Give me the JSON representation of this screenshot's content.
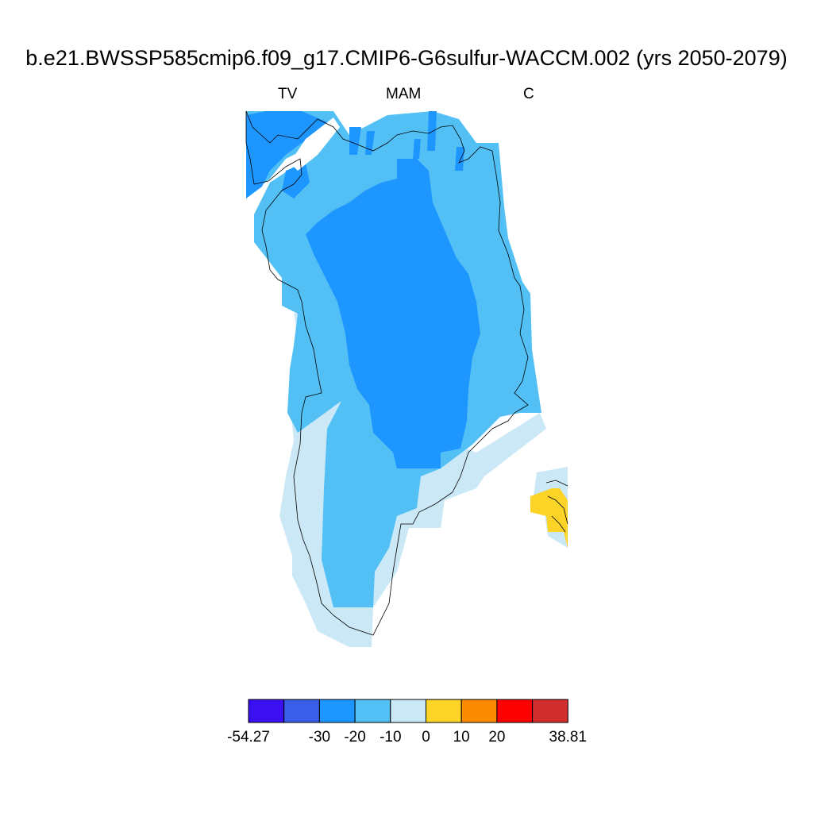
{
  "title": "b.e21.BWSSP585cmip6.f09_g17.CMIP6-G6sulfur-WACCM.002 (yrs 2050-2079)",
  "subtitles": {
    "left": "TV",
    "center": "MAM",
    "right": "C"
  },
  "map": {
    "region": "Greenland",
    "ocean_color": "#ffffff",
    "coastline_color": "#000000"
  },
  "colorbar": {
    "min_label": "-54.27",
    "max_label": "38.81",
    "tick_labels": [
      "-54.27",
      "-30",
      "-20",
      "-10",
      "0",
      "10",
      "20",
      "38.81"
    ],
    "bins": [
      {
        "range": "-54.27 to -40",
        "color": "#3b10f0"
      },
      {
        "range": "-40 to -30",
        "color": "#3b5ee8"
      },
      {
        "range": "-30 to -20",
        "color": "#1e96ff"
      },
      {
        "range": "-20 to -10",
        "color": "#52c0f5"
      },
      {
        "range": "-10 to 0",
        "color": "#cbe8f6"
      },
      {
        "range": "0 to 10",
        "color": "#fcd428"
      },
      {
        "range": "10 to 20",
        "color": "#fd8b00"
      },
      {
        "range": "20 to 30",
        "color": "#fd0000"
      },
      {
        "range": "30 to 38.81",
        "color": "#d12e2e"
      }
    ]
  }
}
